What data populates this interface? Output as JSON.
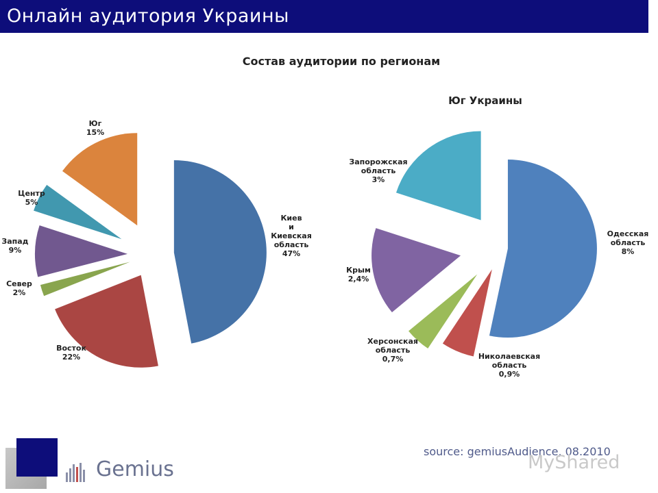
{
  "header": {
    "title": "Онлайн аудитория Украины"
  },
  "subtitle": "Состав аудитории по регионам",
  "chart_data": [
    {
      "type": "pie",
      "title": "",
      "slices": [
        {
          "label": "Киев и Киевская область",
          "value_label": "47%",
          "value": 47,
          "color": "#4572a7"
        },
        {
          "label": "Восток",
          "value_label": "22%",
          "value": 22,
          "color": "#aa4643"
        },
        {
          "label": "Север",
          "value_label": "2%",
          "value": 2,
          "color": "#89a54e"
        },
        {
          "label": "Запад",
          "value_label": "9%",
          "value": 9,
          "color": "#71588f"
        },
        {
          "label": "Центр",
          "value_label": "5%",
          "value": 5,
          "color": "#4198af"
        },
        {
          "label": "Юг",
          "value_label": "15%",
          "value": 15,
          "color": "#db843d"
        }
      ]
    },
    {
      "type": "pie",
      "title": "Юг Украины",
      "slices": [
        {
          "label": "Одесская область",
          "value_label": "8%",
          "value": 8,
          "color": "#4f81bd"
        },
        {
          "label": "Николаевская область",
          "value_label": "0,9%",
          "value": 0.9,
          "color": "#c0504d"
        },
        {
          "label": "Херсонская область",
          "value_label": "0,7%",
          "value": 0.7,
          "color": "#9bbb59"
        },
        {
          "label": "Крым",
          "value_label": "2,4%",
          "value": 2.4,
          "color": "#8064a2"
        },
        {
          "label": "Запорожская область",
          "value_label": "3%",
          "value": 3,
          "color": "#4bacc6"
        }
      ]
    }
  ],
  "footer": {
    "source": "source: gemiusAudience, 08.2010",
    "logo_text": "Gemius",
    "watermark": "MyShared"
  }
}
